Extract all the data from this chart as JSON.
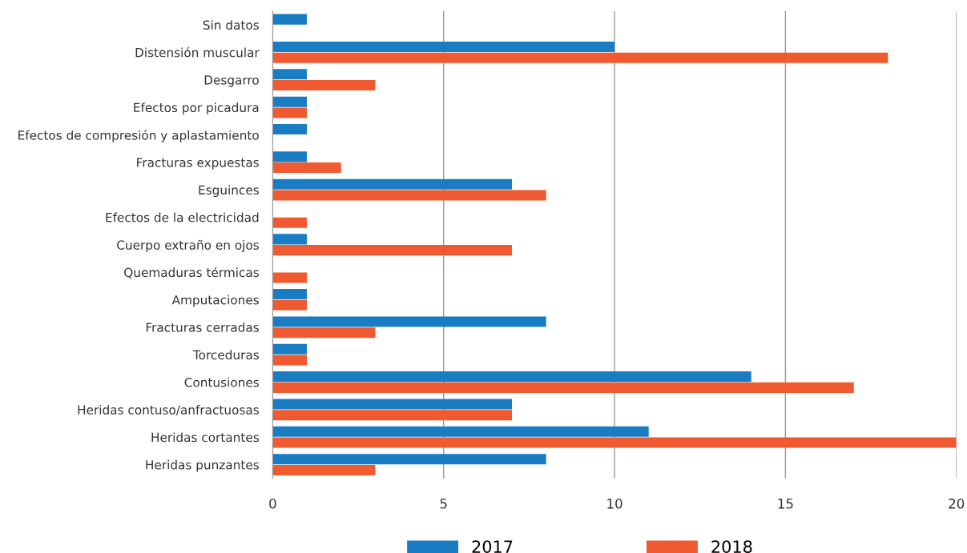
{
  "chart_data": {
    "type": "bar",
    "orientation": "horizontal",
    "categories": [
      "Sin datos",
      "Distensión muscular",
      "Desgarro",
      "Efectos por picadura",
      "Efectos de compresión y aplastamiento",
      "Fracturas expuestas",
      "Esguinces",
      "Efectos de la electricidad",
      "Cuerpo extraño en ojos",
      "Quemaduras térmicas",
      "Amputaciones",
      "Fracturas cerradas",
      "Torceduras",
      "Contusiones",
      "Heridas contuso/anfractuosas",
      "Heridas cortantes",
      "Heridas punzantes"
    ],
    "series": [
      {
        "name": "2017",
        "color": "#1a7dc4",
        "values": [
          1,
          10,
          1,
          1,
          1,
          1,
          7,
          null,
          1,
          null,
          1,
          8,
          1,
          14,
          7,
          11,
          8
        ]
      },
      {
        "name": "2018",
        "color": "#f05a30",
        "values": [
          null,
          18,
          3,
          1,
          null,
          2,
          8,
          1,
          7,
          1,
          1,
          3,
          1,
          17,
          7,
          20,
          3
        ]
      }
    ],
    "xlim": [
      0,
      20
    ],
    "xticks": [
      0,
      5,
      10,
      15,
      20
    ],
    "grid": "x",
    "legend": "bottom"
  }
}
